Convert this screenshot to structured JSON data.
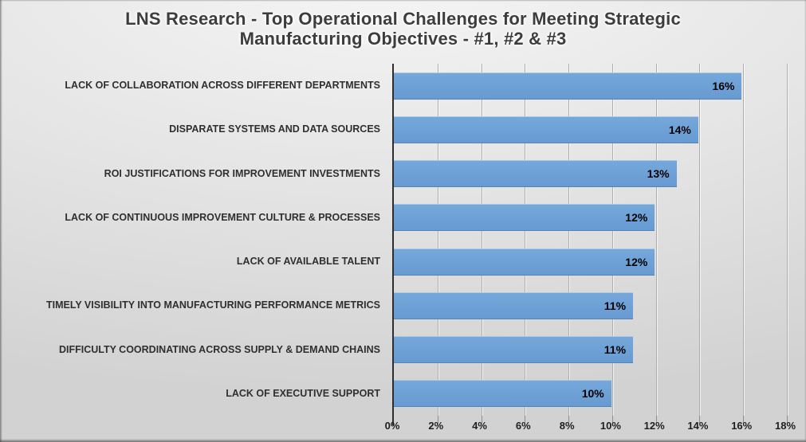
{
  "title": {
    "line1": "LNS Research - Top Operational Challenges for Meeting Strategic",
    "line2": "Manufacturing Objectives - #1, #2 & #3",
    "full": "LNS Research - Top Operational Challenges for Meeting Strategic Manufacturing Objectives - #1, #2 & #3"
  },
  "chart_data": {
    "type": "bar",
    "orientation": "horizontal",
    "title": "LNS Research - Top Operational Challenges for Meeting Strategic Manufacturing Objectives - #1, #2 & #3",
    "categories": [
      "LACK OF COLLABORATION ACROSS DIFFERENT DEPARTMENTS",
      "DISPARATE SYSTEMS AND DATA SOURCES",
      "ROI JUSTIFICATIONS FOR IMPROVEMENT INVESTMENTS",
      "LACK OF CONTINUOUS IMPROVEMENT CULTURE & PROCESSES",
      "LACK OF AVAILABLE TALENT",
      "TIMELY VISIBILITY INTO MANUFACTURING PERFORMANCE METRICS",
      "DIFFICULTY COORDINATING ACROSS SUPPLY & DEMAND CHAINS",
      "LACK OF EXECUTIVE SUPPORT"
    ],
    "values": [
      16,
      14,
      13,
      12,
      12,
      11,
      11,
      10
    ],
    "value_labels": [
      "16%",
      "14%",
      "13%",
      "12%",
      "12%",
      "11%",
      "11%",
      "10%"
    ],
    "x_ticks": [
      "0%",
      "2%",
      "4%",
      "6%",
      "8%",
      "10%",
      "12%",
      "14%",
      "16%",
      "18%"
    ],
    "xlim": [
      0,
      18
    ],
    "xlabel": "",
    "ylabel": "",
    "grid": "vertical gridlines on",
    "legend": "none",
    "bar_color": "#6BA1D8",
    "data_label_color": "#000000",
    "axis_line_color": "#2E2E2E",
    "gridline_color": "#ADADAD",
    "title_color": "#3D3D3D",
    "background": "gray gradient"
  }
}
